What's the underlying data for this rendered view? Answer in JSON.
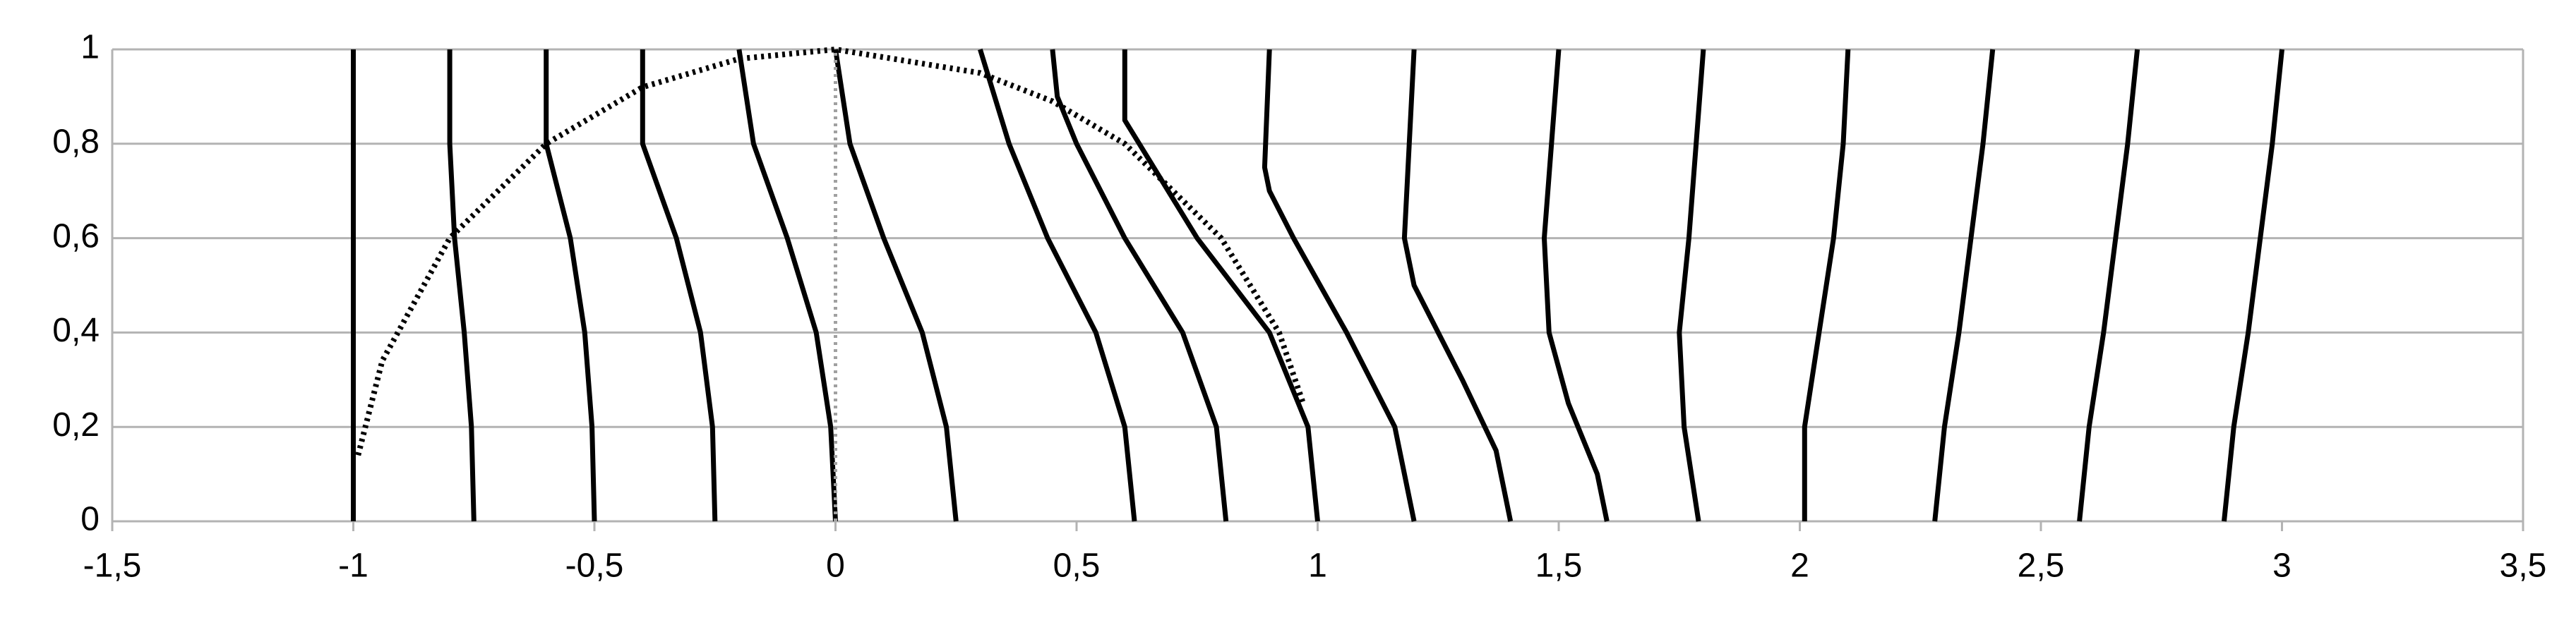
{
  "chart_data": {
    "type": "line",
    "xlim": [
      -1.5,
      3.5
    ],
    "xticks": [
      {
        "value": -1.5,
        "label": "-1,5"
      },
      -1,
      {
        "value": -0.5,
        "label": "-0,5"
      },
      0,
      {
        "value": 0.5,
        "label": "0,5"
      },
      1,
      {
        "value": 1.5,
        "label": "1,5"
      },
      2,
      {
        "value": 2.5,
        "label": "2,5"
      },
      3,
      {
        "value": 3.5,
        "label": "3,5"
      }
    ],
    "ylim": [
      0,
      1
    ],
    "yticks": [
      0,
      {
        "value": 0.2,
        "label": "0,2"
      },
      {
        "value": 0.4,
        "label": "0,4"
      },
      {
        "value": 0.6,
        "label": "0,6"
      },
      {
        "value": 0.8,
        "label": "0,8"
      },
      1
    ],
    "grid": true,
    "series": [
      {
        "color": "#000000",
        "x": [
          -1,
          -1
        ],
        "values": [
          1,
          0
        ]
      },
      {
        "color": "#000000",
        "x": [
          -0.8,
          -0.8,
          -0.79,
          -0.77,
          -0.755,
          -0.75
        ],
        "values": [
          1,
          0.8,
          0.6,
          0.4,
          0.2,
          0
        ]
      },
      {
        "color": "#000000",
        "x": [
          -0.6,
          -0.6,
          -0.55,
          -0.52,
          -0.505,
          -0.5
        ],
        "values": [
          1,
          0.8,
          0.6,
          0.4,
          0.2,
          0
        ]
      },
      {
        "color": "#000000",
        "x": [
          -0.4,
          -0.4,
          -0.33,
          -0.28,
          -0.255,
          -0.25
        ],
        "values": [
          1,
          0.8,
          0.6,
          0.4,
          0.2,
          0
        ]
      },
      {
        "color": "#000000",
        "x": [
          -0.2,
          -0.17,
          -0.1,
          -0.04,
          -0.01,
          0
        ],
        "values": [
          1,
          0.8,
          0.6,
          0.4,
          0.2,
          0
        ]
      },
      {
        "color": "#000000",
        "x": [
          0,
          0.03,
          0.1,
          0.18,
          0.23,
          0.25
        ],
        "values": [
          1,
          0.8,
          0.6,
          0.4,
          0.2,
          0
        ]
      },
      {
        "color": "#000000",
        "x": [
          0.3,
          0.36,
          0.44,
          0.54,
          0.6,
          0.62
        ],
        "values": [
          1,
          0.8,
          0.6,
          0.4,
          0.2,
          0
        ]
      },
      {
        "color": "#000000",
        "x": [
          0.45,
          0.46,
          0.5,
          0.6,
          0.72,
          0.79,
          0.81
        ],
        "values": [
          1,
          0.9,
          0.8,
          0.6,
          0.4,
          0.2,
          0
        ]
      },
      {
        "color": "#000000",
        "x": [
          0.6,
          0.6,
          0.63,
          0.75,
          0.9,
          0.98,
          1
        ],
        "values": [
          1,
          0.85,
          0.8,
          0.6,
          0.4,
          0.2,
          0
        ]
      },
      {
        "color": "#000000",
        "x": [
          0.9,
          0.89,
          0.9,
          0.95,
          1.06,
          1.16,
          1.2
        ],
        "values": [
          1,
          0.75,
          0.7,
          0.6,
          0.4,
          0.2,
          0
        ]
      },
      {
        "color": "#000000",
        "x": [
          1.2,
          1.18,
          1.2,
          1.3,
          1.37,
          1.4
        ],
        "values": [
          1,
          0.6,
          0.5,
          0.3,
          0.15,
          0
        ]
      },
      {
        "color": "#000000",
        "x": [
          1.5,
          1.47,
          1.48,
          1.52,
          1.58,
          1.6
        ],
        "values": [
          1,
          0.6,
          0.4,
          0.25,
          0.1,
          0
        ]
      },
      {
        "color": "#000000",
        "x": [
          1.8,
          1.77,
          1.75,
          1.76,
          1.79
        ],
        "values": [
          1,
          0.6,
          0.4,
          0.2,
          0
        ]
      },
      {
        "color": "#000000",
        "x": [
          2.1,
          2.09,
          2.07,
          2.04,
          2.01,
          2.01
        ],
        "values": [
          1,
          0.8,
          0.6,
          0.4,
          0.2,
          0
        ]
      },
      {
        "color": "#000000",
        "x": [
          2.4,
          2.38,
          2.33,
          2.3,
          2.28
        ],
        "values": [
          1,
          0.8,
          0.4,
          0.2,
          0
        ]
      },
      {
        "color": "#000000",
        "x": [
          2.7,
          2.68,
          2.63,
          2.6,
          2.58
        ],
        "values": [
          1,
          0.8,
          0.4,
          0.2,
          0
        ]
      },
      {
        "color": "#000000",
        "x": [
          3,
          2.98,
          2.93,
          2.9,
          2.88
        ],
        "values": [
          1,
          0.8,
          0.4,
          0.2,
          0
        ]
      },
      {
        "color": "#000000",
        "dash": "dotted",
        "x": [
          -0.99,
          -0.94,
          -0.8,
          -0.6,
          -0.4,
          -0.2,
          0,
          0.3,
          0.45,
          0.6,
          0.8,
          0.92,
          0.97
        ],
        "values": [
          0.14,
          0.34,
          0.6,
          0.8,
          0.92,
          0.98,
          1,
          0.95,
          0.89,
          0.8,
          0.6,
          0.4,
          0.25
        ]
      },
      {
        "color": "#a0a0a0",
        "dash": "dotted",
        "x": [
          0,
          0
        ],
        "values": [
          0,
          1
        ]
      }
    ]
  }
}
